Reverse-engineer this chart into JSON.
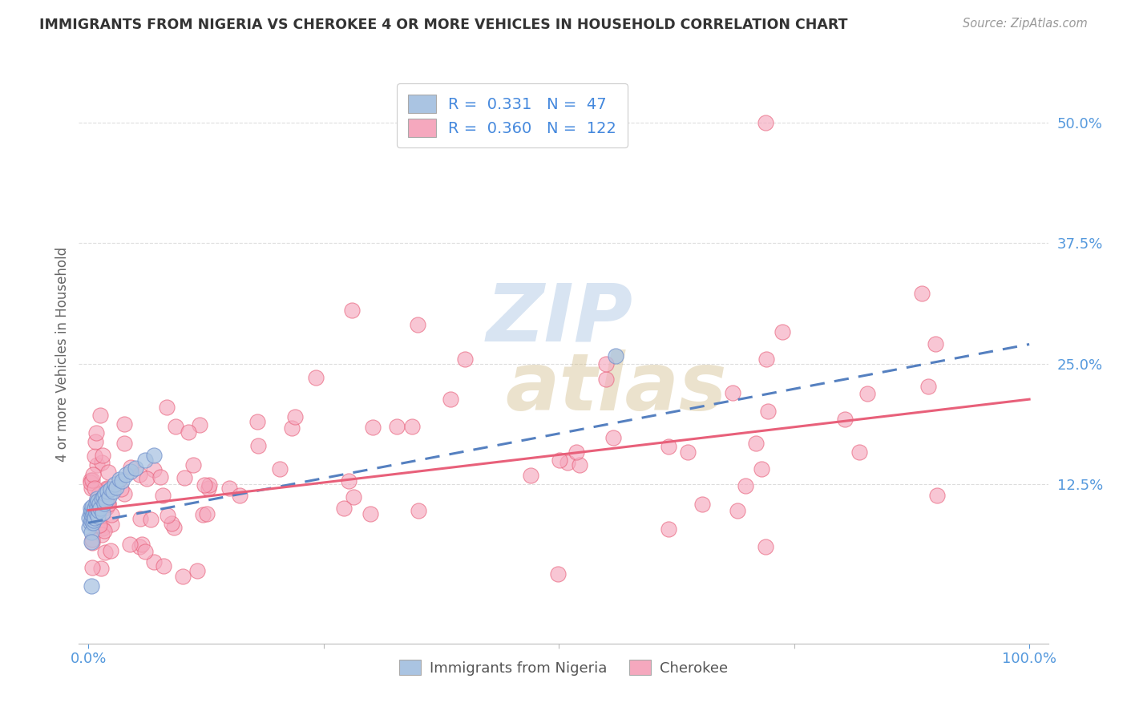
{
  "title": "IMMIGRANTS FROM NIGERIA VS CHEROKEE 4 OR MORE VEHICLES IN HOUSEHOLD CORRELATION CHART",
  "source": "Source: ZipAtlas.com",
  "ylabel": "4 or more Vehicles in Household",
  "ytick_labels": [
    "12.5%",
    "25.0%",
    "37.5%",
    "50.0%"
  ],
  "ytick_values": [
    0.125,
    0.25,
    0.375,
    0.5
  ],
  "xlim": [
    -0.01,
    1.02
  ],
  "ylim": [
    -0.04,
    0.56
  ],
  "R_nigeria": 0.331,
  "N_nigeria": 47,
  "R_cherokee": 0.36,
  "N_cherokee": 122,
  "nigeria_color": "#aac4e2",
  "cherokee_color": "#f5a8be",
  "nigeria_line_color": "#5580c0",
  "cherokee_line_color": "#e8607a",
  "nigeria_edge_color": "#7090cc",
  "cherokee_edge_color": "#e8607a",
  "legend_text_color": "#4488dd",
  "ytick_color": "#5599dd",
  "xtick_color": "#5599dd",
  "grid_color": "#dddddd",
  "watermark_zip_color": "#b8cee8",
  "watermark_atlas_color": "#d4c090",
  "nigeria_line_intercept": 0.085,
  "nigeria_line_slope": 0.185,
  "cherokee_line_intercept": 0.098,
  "cherokee_line_slope": 0.115
}
